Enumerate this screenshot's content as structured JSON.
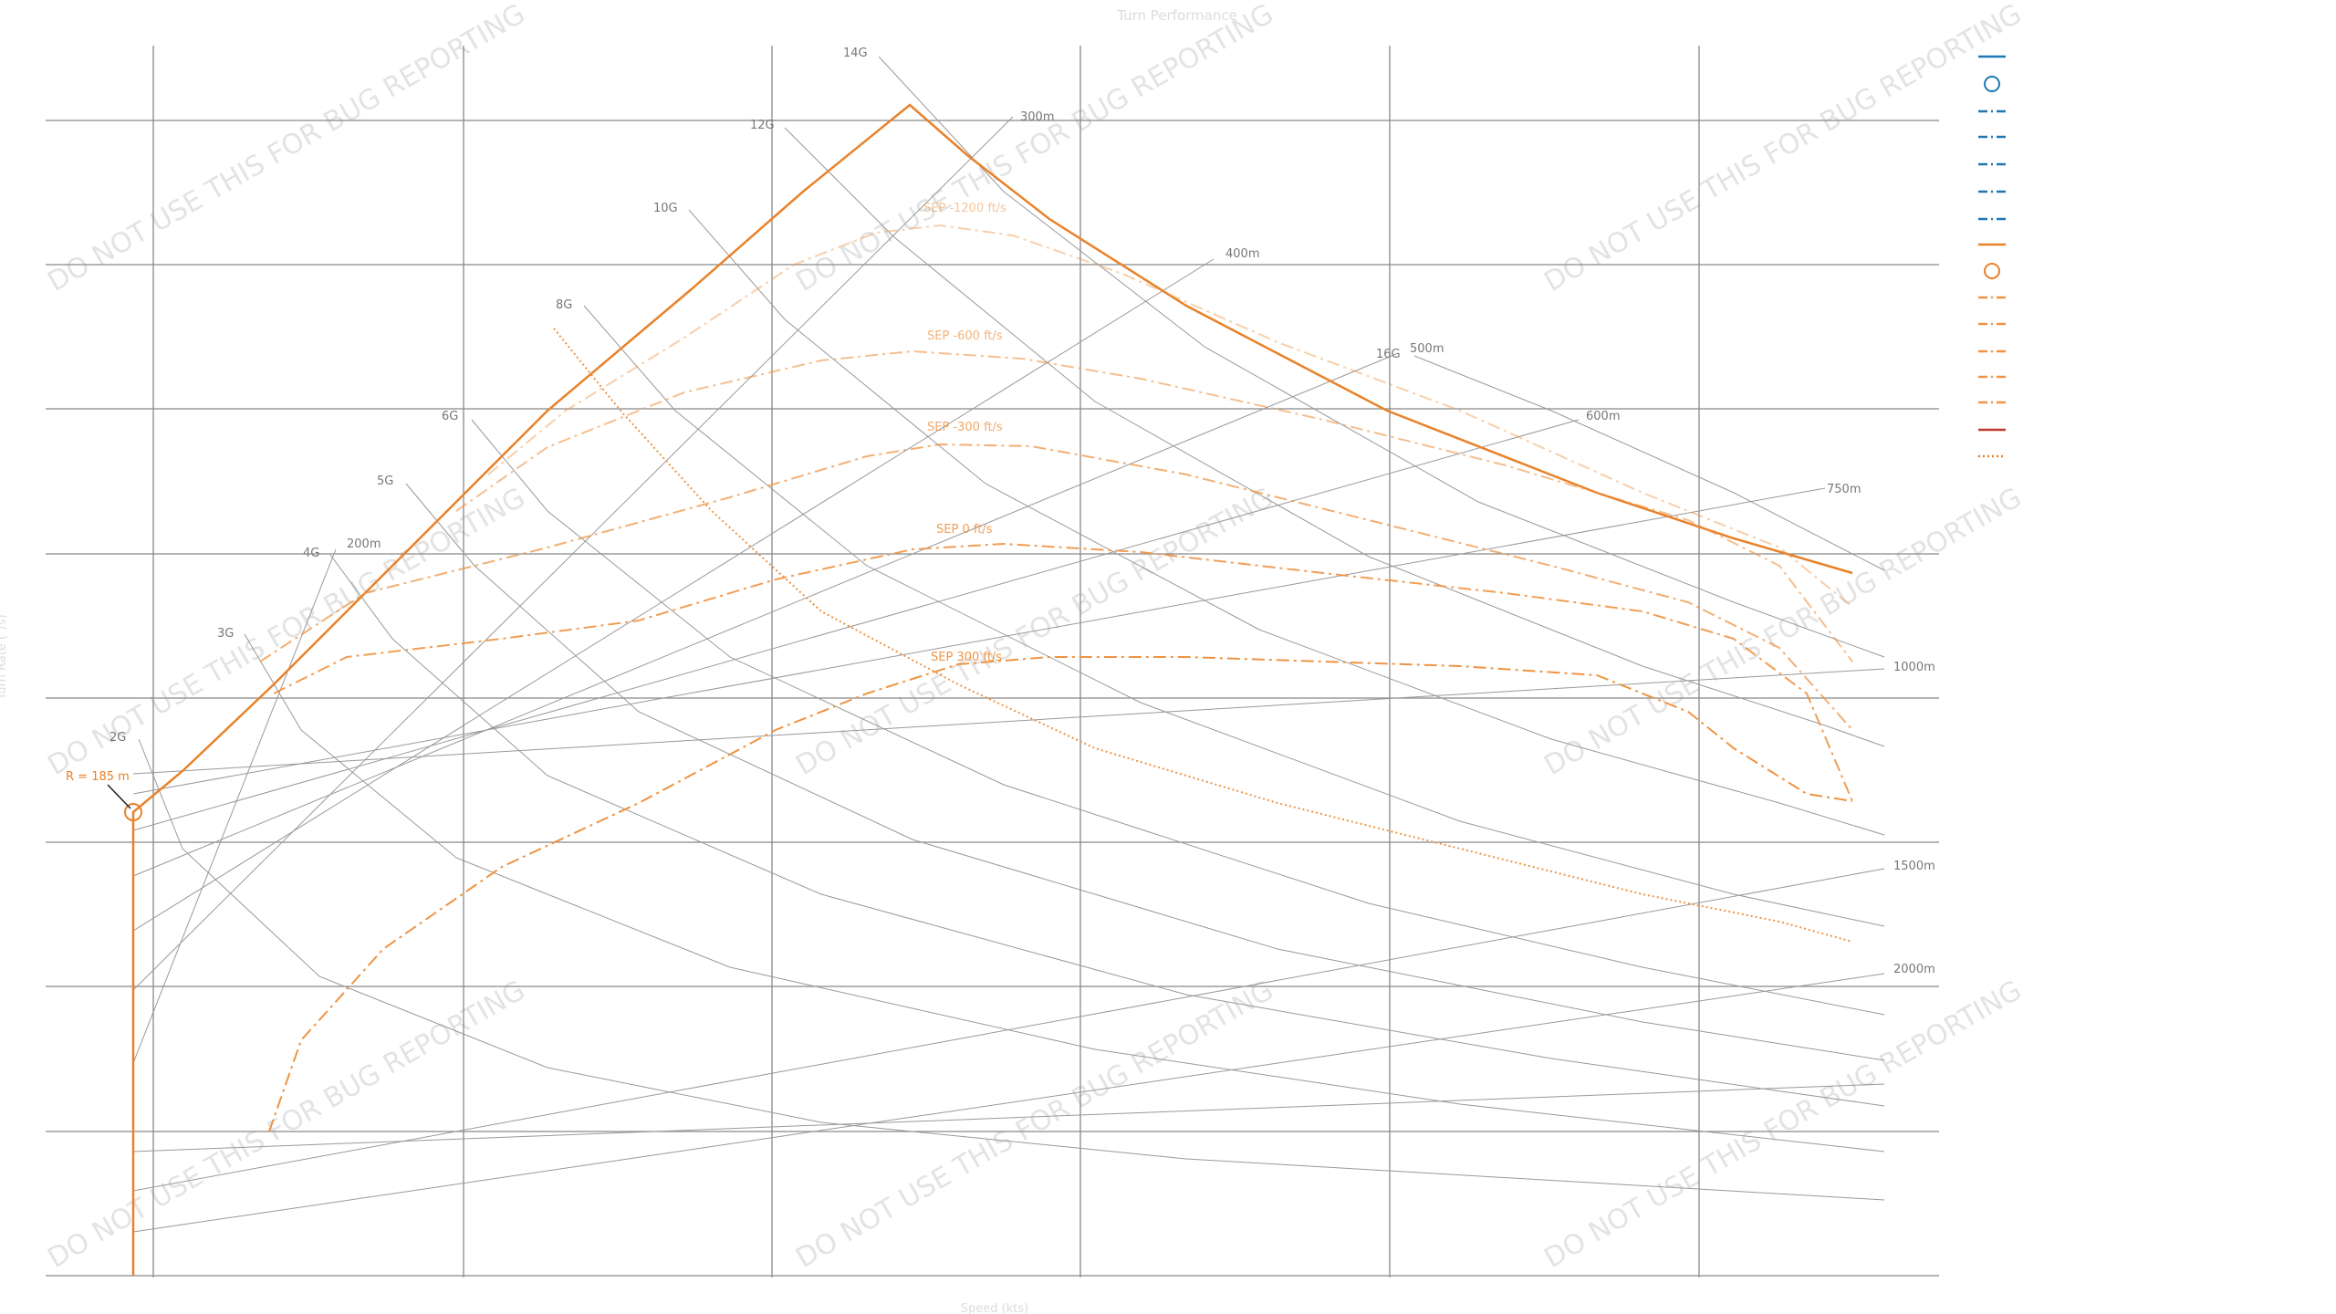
{
  "chart_data": {
    "type": "line",
    "title": "Turn Performance",
    "xlabel": "Speed (kts)",
    "ylabel": "Turn Rate (°/s)",
    "grid": true,
    "legend_placement": "right",
    "watermark": "DO NOT USE THIS FOR BUG REPORTING",
    "load_factor_labels": [
      "2G",
      "3G",
      "4G",
      "5G",
      "6G",
      "8G",
      "10G",
      "12G",
      "14G",
      "16G"
    ],
    "radius_labels": [
      "200m",
      "300m",
      "400m",
      "500m",
      "600m",
      "750m",
      "1000m",
      "1500m",
      "2000m"
    ],
    "sep_labels": [
      "SEP -1200 ft/s",
      "SEP -600 ft/s",
      "SEP -300 ft/s",
      "SEP 0 ft/s",
      "SEP 300 ft/s"
    ],
    "annotation": "R = 185 m",
    "colors": {
      "envelope": "#e8822a",
      "sep": "#ee9444",
      "grid": "#888888",
      "guide": "#999999",
      "marker": "#e8822a",
      "legend_blue": "#1f77b4"
    },
    "series": [
      {
        "role": "max-turn-envelope",
        "style": "solid"
      },
      {
        "role": "sep",
        "label_index": 0,
        "style": "dashdot",
        "opacity": 0.45
      },
      {
        "role": "sep",
        "label_index": 1,
        "style": "dashdot",
        "opacity": 0.6
      },
      {
        "role": "sep",
        "label_index": 2,
        "style": "dashdot",
        "opacity": 0.75
      },
      {
        "role": "sep",
        "label_index": 3,
        "style": "dashdot",
        "opacity": 0.9
      },
      {
        "role": "sep",
        "label_index": 4,
        "style": "dashdot",
        "opacity": 1.0
      },
      {
        "role": "dotted-limit",
        "style": "dotted"
      }
    ]
  }
}
